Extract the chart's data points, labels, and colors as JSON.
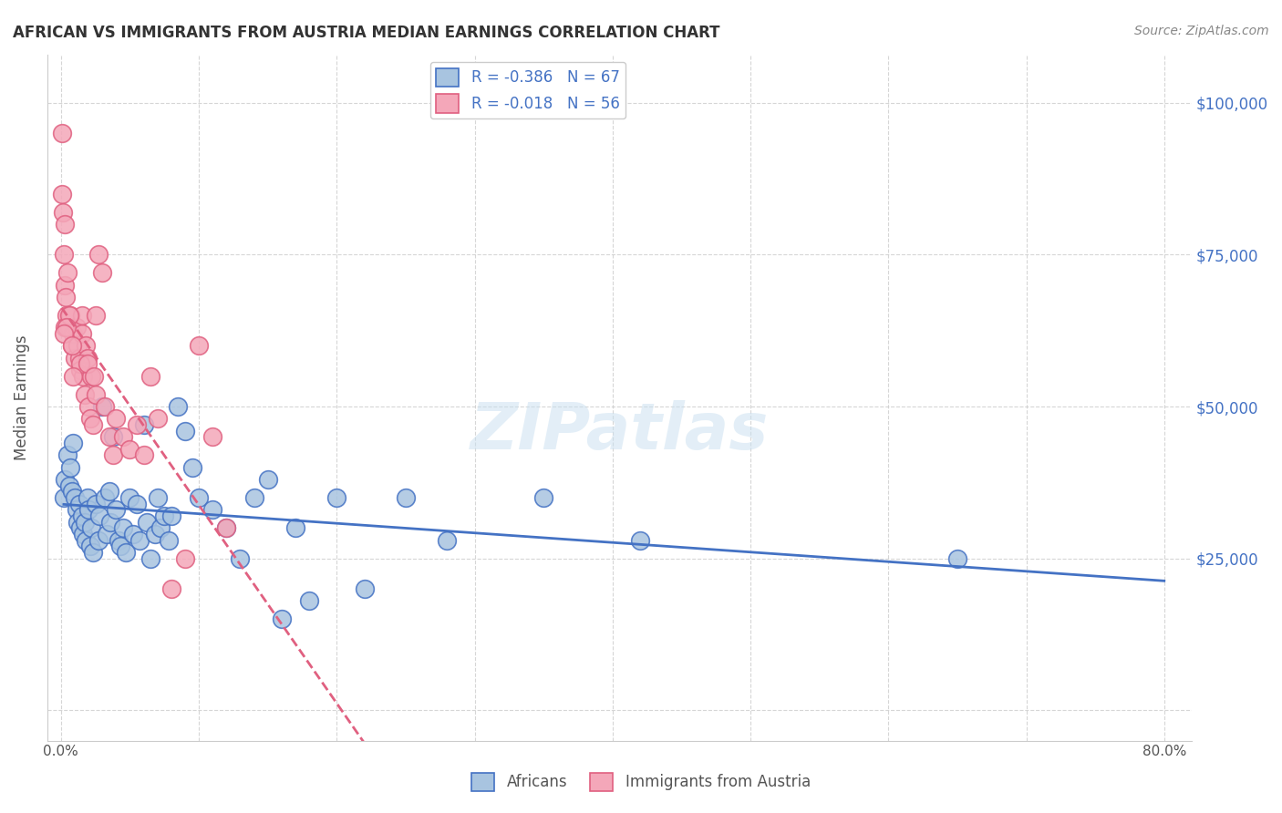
{
  "title": "AFRICAN VS IMMIGRANTS FROM AUSTRIA MEDIAN EARNINGS CORRELATION CHART",
  "source": "Source: ZipAtlas.com",
  "ylabel": "Median Earnings",
  "y_ticks": [
    0,
    25000,
    50000,
    75000,
    100000
  ],
  "y_tick_labels": [
    "",
    "$25,000",
    "$50,000",
    "$75,000",
    "$100,000"
  ],
  "x_ticks": [
    0.0,
    0.1,
    0.2,
    0.3,
    0.4,
    0.5,
    0.6,
    0.7,
    0.8
  ],
  "x_tick_labels": [
    "0.0%",
    "",
    "",
    "",
    "",
    "",
    "",
    "",
    "80.0%"
  ],
  "africans_color": "#a8c4e0",
  "austria_color": "#f4a7b9",
  "trend_blue": "#4472c4",
  "trend_pink": "#e06080",
  "legend_blue_label": "R = -0.386   N = 67",
  "legend_pink_label": "R = -0.018   N = 56",
  "africans_label": "Africans",
  "austria_label": "Immigrants from Austria",
  "watermark": "ZIPatlas",
  "africans_x": [
    0.002,
    0.003,
    0.005,
    0.006,
    0.007,
    0.008,
    0.009,
    0.01,
    0.011,
    0.012,
    0.013,
    0.014,
    0.015,
    0.016,
    0.017,
    0.018,
    0.019,
    0.02,
    0.021,
    0.022,
    0.023,
    0.025,
    0.027,
    0.028,
    0.03,
    0.032,
    0.033,
    0.035,
    0.036,
    0.038,
    0.04,
    0.042,
    0.043,
    0.045,
    0.047,
    0.05,
    0.052,
    0.055,
    0.057,
    0.06,
    0.062,
    0.065,
    0.068,
    0.07,
    0.072,
    0.075,
    0.078,
    0.08,
    0.085,
    0.09,
    0.095,
    0.1,
    0.11,
    0.12,
    0.13,
    0.14,
    0.15,
    0.16,
    0.17,
    0.18,
    0.2,
    0.22,
    0.25,
    0.28,
    0.35,
    0.42,
    0.65
  ],
  "africans_y": [
    35000,
    38000,
    42000,
    37000,
    40000,
    36000,
    44000,
    35000,
    33000,
    31000,
    34000,
    30000,
    32000,
    29000,
    31000,
    28000,
    35000,
    33000,
    27000,
    30000,
    26000,
    34000,
    28000,
    32000,
    50000,
    35000,
    29000,
    36000,
    31000,
    45000,
    33000,
    28000,
    27000,
    30000,
    26000,
    35000,
    29000,
    34000,
    28000,
    47000,
    31000,
    25000,
    29000,
    35000,
    30000,
    32000,
    28000,
    32000,
    50000,
    46000,
    40000,
    35000,
    33000,
    30000,
    25000,
    35000,
    38000,
    15000,
    30000,
    18000,
    35000,
    20000,
    35000,
    28000,
    35000,
    28000,
    25000
  ],
  "austria_x": [
    0.0005,
    0.001,
    0.0015,
    0.002,
    0.0025,
    0.003,
    0.0035,
    0.004,
    0.005,
    0.006,
    0.007,
    0.008,
    0.009,
    0.01,
    0.011,
    0.012,
    0.013,
    0.014,
    0.015,
    0.016,
    0.017,
    0.018,
    0.019,
    0.02,
    0.021,
    0.022,
    0.023,
    0.025,
    0.027,
    0.03,
    0.032,
    0.035,
    0.038,
    0.04,
    0.045,
    0.05,
    0.055,
    0.06,
    0.065,
    0.07,
    0.08,
    0.09,
    0.1,
    0.11,
    0.12,
    0.015,
    0.025,
    0.003,
    0.006,
    0.004,
    0.002,
    0.008,
    0.014,
    0.019,
    0.024,
    0.009
  ],
  "austria_y": [
    95000,
    85000,
    82000,
    75000,
    80000,
    70000,
    68000,
    65000,
    72000,
    63000,
    65000,
    60000,
    62000,
    58000,
    63000,
    60000,
    58000,
    56000,
    62000,
    55000,
    52000,
    60000,
    58000,
    50000,
    48000,
    55000,
    47000,
    52000,
    75000,
    72000,
    50000,
    45000,
    42000,
    48000,
    45000,
    43000,
    47000,
    42000,
    55000,
    48000,
    20000,
    25000,
    60000,
    45000,
    30000,
    65000,
    65000,
    63000,
    65000,
    63000,
    62000,
    60000,
    57000,
    57000,
    55000,
    55000
  ]
}
